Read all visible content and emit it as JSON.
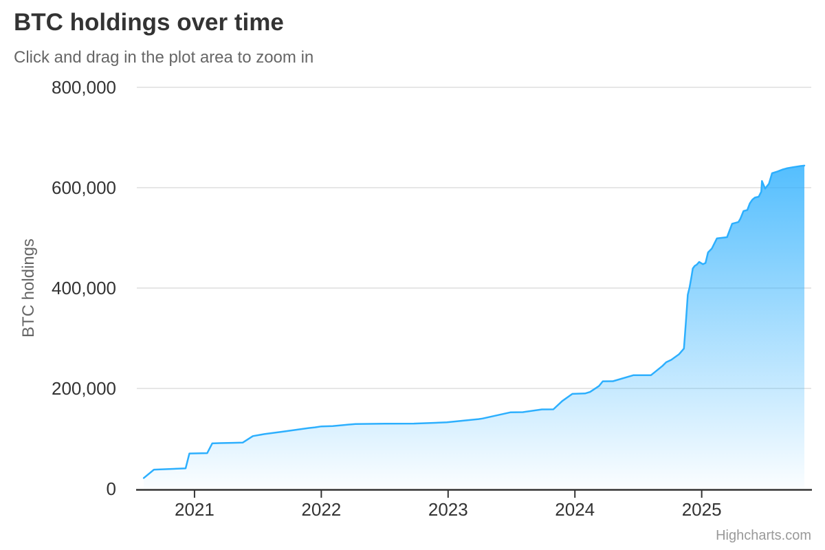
{
  "chart": {
    "title": "BTC holdings over time",
    "subtitle": "Click and drag in the plot area to zoom in",
    "y_axis_title": "BTC holdings",
    "credits": "Highcharts.com"
  },
  "colors": {
    "accent": "#2caffe",
    "background": "#ffffff",
    "title_text": "#333333",
    "subtitle_text": "#666666",
    "axis_label_text": "#333333",
    "axis_title_text": "#666666",
    "grid_line": "#e6e6e6",
    "axis_line": "#333333",
    "credits_text": "#999999"
  },
  "chart_data": {
    "type": "area",
    "title": "BTC holdings over time",
    "subtitle": "Click and drag in the plot area to zoom in",
    "xlabel": "",
    "ylabel": "BTC holdings",
    "xlim": [
      2020.545,
      2025.864
    ],
    "ylim": [
      0,
      800000
    ],
    "grid": "horizontal gridlines only, light gray",
    "legend": "none",
    "x_ticks": [
      {
        "value": 2021,
        "label": "2021"
      },
      {
        "value": 2022,
        "label": "2022"
      },
      {
        "value": 2023,
        "label": "2023"
      },
      {
        "value": 2024,
        "label": "2024"
      },
      {
        "value": 2025,
        "label": "2025"
      }
    ],
    "y_ticks": [
      {
        "value": 0,
        "label": "0"
      },
      {
        "value": 200000,
        "label": "200,000"
      },
      {
        "value": 400000,
        "label": "400,000"
      },
      {
        "value": 600000,
        "label": "600,000"
      },
      {
        "value": 800000,
        "label": "800,000"
      }
    ],
    "series": [
      {
        "name": "BTC holdings",
        "color": "#2caffe",
        "fill": "vertical gradient of line color fading to transparent at y=0",
        "points": [
          [
            2020.6,
            21454
          ],
          [
            2020.68,
            38250
          ],
          [
            2020.93,
            40824
          ],
          [
            2020.96,
            70470
          ],
          [
            2021.06,
            70784
          ],
          [
            2021.1,
            71079
          ],
          [
            2021.14,
            90531
          ],
          [
            2021.2,
            91064
          ],
          [
            2021.3,
            91579
          ],
          [
            2021.38,
            92079
          ],
          [
            2021.46,
            105085
          ],
          [
            2021.55,
            108992
          ],
          [
            2021.7,
            114042
          ],
          [
            2021.9,
            121044
          ],
          [
            2021.95,
            122478
          ],
          [
            2022.0,
            124391
          ],
          [
            2022.09,
            125051
          ],
          [
            2022.27,
            129218
          ],
          [
            2022.5,
            129699
          ],
          [
            2022.73,
            130000
          ],
          [
            2022.99,
            132500
          ],
          [
            2023.24,
            138955
          ],
          [
            2023.27,
            140000
          ],
          [
            2023.49,
            152333
          ],
          [
            2023.59,
            152800
          ],
          [
            2023.74,
            158245
          ],
          [
            2023.83,
            158400
          ],
          [
            2023.9,
            175000
          ],
          [
            2023.98,
            189150
          ],
          [
            2024.08,
            190000
          ],
          [
            2024.12,
            193000
          ],
          [
            2024.19,
            205000
          ],
          [
            2024.22,
            214246
          ],
          [
            2024.3,
            214400
          ],
          [
            2024.46,
            226331
          ],
          [
            2024.6,
            226500
          ],
          [
            2024.69,
            244800
          ],
          [
            2024.72,
            252220
          ],
          [
            2024.76,
            257000
          ],
          [
            2024.82,
            268000
          ],
          [
            2024.86,
            279420
          ],
          [
            2024.875,
            331200
          ],
          [
            2024.89,
            386700
          ],
          [
            2024.905,
            402100
          ],
          [
            2024.92,
            423650
          ],
          [
            2024.93,
            439000
          ],
          [
            2024.945,
            444262
          ],
          [
            2024.96,
            446400
          ],
          [
            2024.98,
            452000
          ],
          [
            2025.01,
            447470
          ],
          [
            2025.03,
            450000
          ],
          [
            2025.05,
            471107
          ],
          [
            2025.08,
            478740
          ],
          [
            2025.12,
            499096
          ],
          [
            2025.2,
            501400
          ],
          [
            2025.24,
            528185
          ],
          [
            2025.29,
            531644
          ],
          [
            2025.305,
            538200
          ],
          [
            2025.33,
            553555
          ],
          [
            2025.36,
            555450
          ],
          [
            2025.38,
            568840
          ],
          [
            2025.4,
            576230
          ],
          [
            2025.42,
            580250
          ],
          [
            2025.45,
            582000
          ],
          [
            2025.47,
            592100
          ],
          [
            2025.475,
            613300
          ],
          [
            2025.5,
            598200
          ],
          [
            2025.53,
            607770
          ],
          [
            2025.555,
            628791
          ],
          [
            2025.6,
            632457
          ],
          [
            2025.64,
            636505
          ],
          [
            2025.67,
            638460
          ],
          [
            2025.72,
            640808
          ],
          [
            2025.78,
            643200
          ],
          [
            2025.81,
            644000
          ]
        ]
      }
    ]
  }
}
